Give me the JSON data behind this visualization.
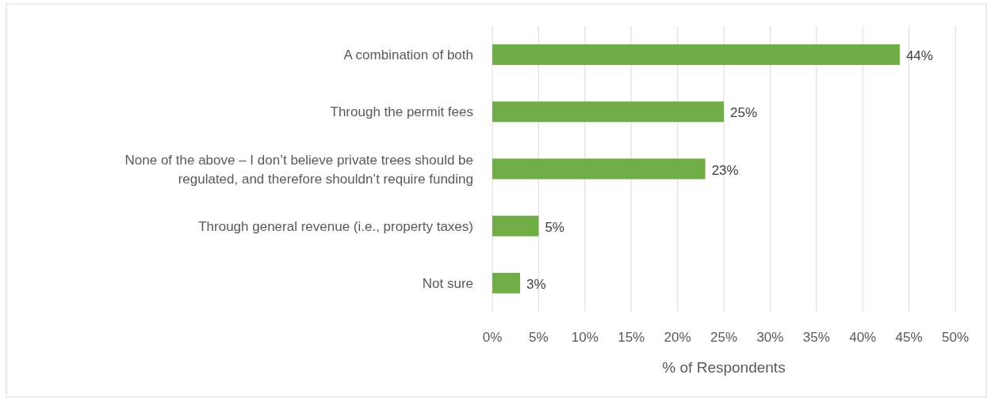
{
  "chart_data": {
    "type": "bar",
    "orientation": "horizontal",
    "categories": [
      "A combination of both",
      "Through the permit fees",
      "None of the above – I don’t believe private trees should be regulated, and therefore shouldn’t require funding",
      "Through general revenue (i.e., property taxes)",
      "Not sure"
    ],
    "values": [
      44,
      25,
      23,
      5,
      3
    ],
    "value_labels": [
      "44%",
      "25%",
      "23%",
      "5%",
      "3%"
    ],
    "color": "#70ad47",
    "xlim": [
      0,
      50
    ],
    "xticks": [
      {
        "value": 0,
        "label": "0%"
      },
      {
        "value": 5,
        "label": "5%"
      },
      {
        "value": 10,
        "label": "10%"
      },
      {
        "value": 15,
        "label": "15%"
      },
      {
        "value": 20,
        "label": "20%"
      },
      {
        "value": 25,
        "label": "25%"
      },
      {
        "value": 30,
        "label": "30%"
      },
      {
        "value": 35,
        "label": "35%"
      },
      {
        "value": 40,
        "label": "40%"
      },
      {
        "value": 45,
        "label": "45%"
      },
      {
        "value": 50,
        "label": "50%"
      }
    ],
    "xlabel": "% of Respondents",
    "grid": "x"
  }
}
